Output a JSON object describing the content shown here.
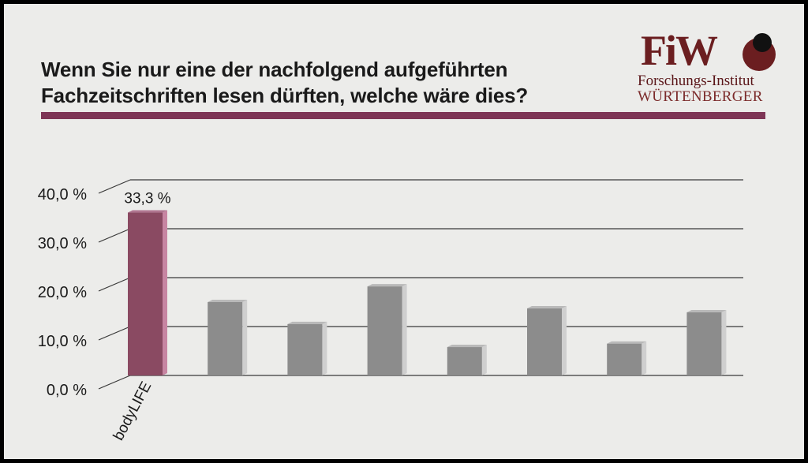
{
  "title_lines": [
    "Wenn Sie nur eine der nachfolgend aufgeführten",
    "Fachzeitschriften lesen dürften, welche wäre dies?"
  ],
  "logo": {
    "mark": "FiW",
    "line1": "Forschungs-Institut",
    "line2": "WÜRTENBERGER"
  },
  "colors": {
    "accent": "#7e3556",
    "highlight_bar": "#8a4a62",
    "bar": "#8c8c8c"
  },
  "chart_data": {
    "type": "bar",
    "categories": [
      "bodyLIFE",
      "",
      "",
      "",
      "",
      "",
      "",
      ""
    ],
    "values": [
      33.3,
      15.0,
      10.5,
      18.2,
      5.8,
      13.7,
      6.5,
      12.9
    ],
    "data_labels": [
      "33,3 %",
      "",
      "",
      "",
      "",
      "",
      "",
      ""
    ],
    "highlight_index": 0,
    "y_ticks": [
      "0,0 %",
      "10,0 %",
      "20,0 %",
      "30,0 %",
      "40,0 %"
    ],
    "y_tick_values": [
      0,
      10,
      20,
      30,
      40
    ],
    "ylim": [
      0,
      40
    ],
    "grid": true,
    "legend": "none"
  }
}
